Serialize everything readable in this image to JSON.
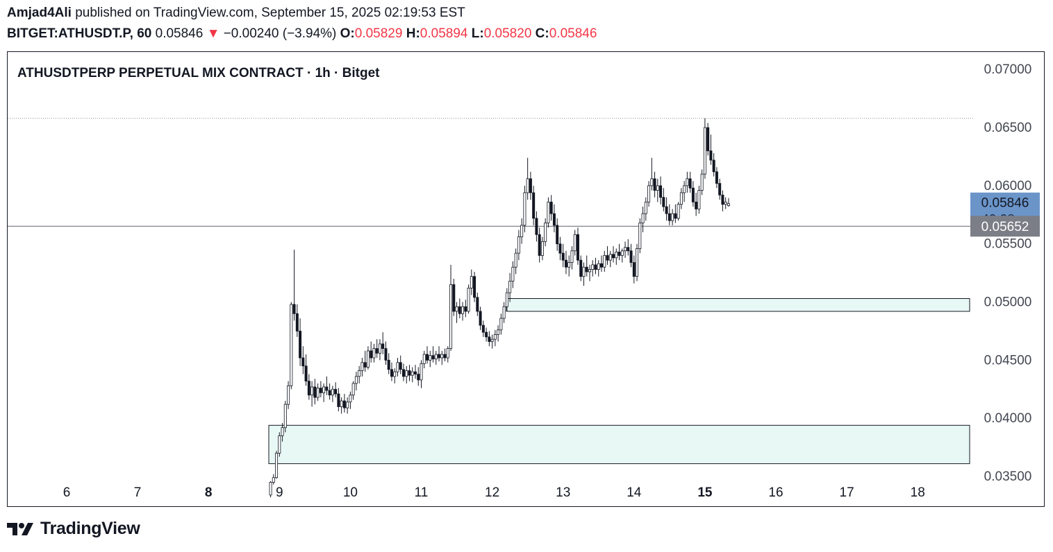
{
  "header": {
    "author": "Amjad4Ali",
    "published_text": "published on TradingView.com, September 15, 2025 02:19:53 EST",
    "symbol": "BITGET:ATHUSDT.P, 60",
    "last": "0.05846",
    "change": "−0.00240 (−3.94%)",
    "open_label": "O:",
    "open": "0.05829",
    "high_label": "H:",
    "high": "0.05894",
    "low_label": "L:",
    "low": "0.05820",
    "close_label": "C:",
    "close": "0.05846"
  },
  "footer": {
    "brand": "TradingView"
  },
  "colors": {
    "candle": "#131722",
    "zone_fill": "#e8f8f4",
    "price_tag": "#6b95c9",
    "line_tag": "#7b7e86",
    "red": "#f23645"
  },
  "chart_data": {
    "type": "candlestick",
    "title": "ATHUSDTPERP PERPETUAL MIX CONTRACT · 1h · Bitget",
    "x_tick_labels": [
      "6",
      "7",
      "8",
      "9",
      "10",
      "11",
      "12",
      "13",
      "14",
      "15",
      "16",
      "17",
      "18"
    ],
    "x_tick_bold": [
      "8",
      "15"
    ],
    "ylim": [
      0.0325,
      0.0715
    ],
    "y_tick_labels": [
      "0.07000",
      "0.06500",
      "0.06000",
      "0.05500",
      "0.05000",
      "0.04500",
      "0.04000",
      "0.03500"
    ],
    "last_price": {
      "value": 0.05846,
      "label": "0.05846",
      "countdown": "40:08"
    },
    "horizontal_line": {
      "value": 0.05652,
      "label": "0.05652"
    },
    "dotted_line": {
      "value": 0.0658
    },
    "zones": [
      {
        "from_day": 12.2,
        "top": 0.0503,
        "bottom": 0.0492
      },
      {
        "from_day": 8.85,
        "top": 0.0394,
        "bottom": 0.0361
      }
    ],
    "candles_hourly_from_sep8_21h": [
      {
        "o": 0.0334,
        "h": 0.0346,
        "l": 0.0332,
        "c": 0.0345
      },
      {
        "o": 0.0345,
        "h": 0.0352,
        "l": 0.0343,
        "c": 0.0349
      },
      {
        "o": 0.0349,
        "h": 0.0372,
        "l": 0.0348,
        "c": 0.037
      },
      {
        "o": 0.037,
        "h": 0.0388,
        "l": 0.0367,
        "c": 0.0385
      },
      {
        "o": 0.0385,
        "h": 0.0396,
        "l": 0.038,
        "c": 0.0392
      },
      {
        "o": 0.0392,
        "h": 0.0415,
        "l": 0.0388,
        "c": 0.0412
      },
      {
        "o": 0.0412,
        "h": 0.0432,
        "l": 0.0408,
        "c": 0.0428
      },
      {
        "o": 0.0428,
        "h": 0.05,
        "l": 0.0425,
        "c": 0.0498
      },
      {
        "o": 0.0498,
        "h": 0.0545,
        "l": 0.0484,
        "c": 0.049
      },
      {
        "o": 0.049,
        "h": 0.0498,
        "l": 0.047,
        "c": 0.0475
      },
      {
        "o": 0.0475,
        "h": 0.0486,
        "l": 0.0445,
        "c": 0.0452
      },
      {
        "o": 0.0452,
        "h": 0.0462,
        "l": 0.0438,
        "c": 0.0445
      },
      {
        "o": 0.0445,
        "h": 0.0455,
        "l": 0.0428,
        "c": 0.0432
      },
      {
        "o": 0.0432,
        "h": 0.0438,
        "l": 0.0416,
        "c": 0.042
      },
      {
        "o": 0.042,
        "h": 0.0432,
        "l": 0.041,
        "c": 0.0427
      },
      {
        "o": 0.0427,
        "h": 0.0434,
        "l": 0.0412,
        "c": 0.0418
      },
      {
        "o": 0.0418,
        "h": 0.043,
        "l": 0.0415,
        "c": 0.0426
      },
      {
        "o": 0.0426,
        "h": 0.0432,
        "l": 0.0418,
        "c": 0.0422
      },
      {
        "o": 0.0422,
        "h": 0.043,
        "l": 0.0414,
        "c": 0.0427
      },
      {
        "o": 0.0427,
        "h": 0.0436,
        "l": 0.042,
        "c": 0.0424
      },
      {
        "o": 0.0424,
        "h": 0.043,
        "l": 0.0416,
        "c": 0.042
      },
      {
        "o": 0.042,
        "h": 0.0428,
        "l": 0.0414,
        "c": 0.0425
      },
      {
        "o": 0.0425,
        "h": 0.0431,
        "l": 0.0418,
        "c": 0.0421
      },
      {
        "o": 0.0421,
        "h": 0.0426,
        "l": 0.0406,
        "c": 0.041
      },
      {
        "o": 0.041,
        "h": 0.0418,
        "l": 0.0404,
        "c": 0.0415
      },
      {
        "o": 0.0415,
        "h": 0.0421,
        "l": 0.0405,
        "c": 0.0409
      },
      {
        "o": 0.0409,
        "h": 0.0418,
        "l": 0.0404,
        "c": 0.0414
      },
      {
        "o": 0.0414,
        "h": 0.0423,
        "l": 0.0408,
        "c": 0.042
      },
      {
        "o": 0.042,
        "h": 0.0432,
        "l": 0.0416,
        "c": 0.043
      },
      {
        "o": 0.043,
        "h": 0.044,
        "l": 0.0424,
        "c": 0.0436
      },
      {
        "o": 0.0436,
        "h": 0.0445,
        "l": 0.043,
        "c": 0.0441
      },
      {
        "o": 0.0441,
        "h": 0.0452,
        "l": 0.0436,
        "c": 0.0448
      },
      {
        "o": 0.0448,
        "h": 0.0458,
        "l": 0.044,
        "c": 0.0444
      },
      {
        "o": 0.0444,
        "h": 0.0462,
        "l": 0.0442,
        "c": 0.0458
      },
      {
        "o": 0.0458,
        "h": 0.0466,
        "l": 0.0448,
        "c": 0.0452
      },
      {
        "o": 0.0452,
        "h": 0.0464,
        "l": 0.0448,
        "c": 0.046
      },
      {
        "o": 0.046,
        "h": 0.0468,
        "l": 0.0452,
        "c": 0.0456
      },
      {
        "o": 0.0456,
        "h": 0.0468,
        "l": 0.045,
        "c": 0.0464
      },
      {
        "o": 0.0464,
        "h": 0.0474,
        "l": 0.0455,
        "c": 0.046
      },
      {
        "o": 0.046,
        "h": 0.0466,
        "l": 0.0446,
        "c": 0.045
      },
      {
        "o": 0.045,
        "h": 0.0456,
        "l": 0.0438,
        "c": 0.0442
      },
      {
        "o": 0.0442,
        "h": 0.0448,
        "l": 0.0432,
        "c": 0.0436
      },
      {
        "o": 0.0436,
        "h": 0.0443,
        "l": 0.043,
        "c": 0.044
      },
      {
        "o": 0.044,
        "h": 0.0452,
        "l": 0.0436,
        "c": 0.0448
      },
      {
        "o": 0.0448,
        "h": 0.0454,
        "l": 0.0438,
        "c": 0.0442
      },
      {
        "o": 0.0442,
        "h": 0.0447,
        "l": 0.0432,
        "c": 0.0436
      },
      {
        "o": 0.0436,
        "h": 0.0445,
        "l": 0.043,
        "c": 0.0441
      },
      {
        "o": 0.0441,
        "h": 0.0446,
        "l": 0.0432,
        "c": 0.0437
      },
      {
        "o": 0.0437,
        "h": 0.0444,
        "l": 0.0431,
        "c": 0.044
      },
      {
        "o": 0.044,
        "h": 0.0446,
        "l": 0.0434,
        "c": 0.0438
      },
      {
        "o": 0.0438,
        "h": 0.0444,
        "l": 0.0428,
        "c": 0.0433
      },
      {
        "o": 0.0433,
        "h": 0.045,
        "l": 0.0426,
        "c": 0.0447
      },
      {
        "o": 0.0447,
        "h": 0.0458,
        "l": 0.0443,
        "c": 0.0455
      },
      {
        "o": 0.0455,
        "h": 0.0462,
        "l": 0.0447,
        "c": 0.045
      },
      {
        "o": 0.045,
        "h": 0.0458,
        "l": 0.0444,
        "c": 0.0454
      },
      {
        "o": 0.0454,
        "h": 0.0462,
        "l": 0.0448,
        "c": 0.0451
      },
      {
        "o": 0.0451,
        "h": 0.0458,
        "l": 0.0446,
        "c": 0.0455
      },
      {
        "o": 0.0455,
        "h": 0.0462,
        "l": 0.0449,
        "c": 0.0452
      },
      {
        "o": 0.0452,
        "h": 0.0458,
        "l": 0.0446,
        "c": 0.0455
      },
      {
        "o": 0.0455,
        "h": 0.046,
        "l": 0.0449,
        "c": 0.0452
      },
      {
        "o": 0.0452,
        "h": 0.0462,
        "l": 0.0448,
        "c": 0.046
      },
      {
        "o": 0.046,
        "h": 0.0532,
        "l": 0.0458,
        "c": 0.0515
      },
      {
        "o": 0.0515,
        "h": 0.052,
        "l": 0.0488,
        "c": 0.0492
      },
      {
        "o": 0.0492,
        "h": 0.05,
        "l": 0.0482,
        "c": 0.0496
      },
      {
        "o": 0.0496,
        "h": 0.0503,
        "l": 0.0486,
        "c": 0.049
      },
      {
        "o": 0.049,
        "h": 0.05,
        "l": 0.0484,
        "c": 0.0496
      },
      {
        "o": 0.0496,
        "h": 0.0502,
        "l": 0.0487,
        "c": 0.0492
      },
      {
        "o": 0.0492,
        "h": 0.0515,
        "l": 0.049,
        "c": 0.0512
      },
      {
        "o": 0.0512,
        "h": 0.0528,
        "l": 0.0506,
        "c": 0.0522
      },
      {
        "o": 0.0522,
        "h": 0.0526,
        "l": 0.05,
        "c": 0.0504
      },
      {
        "o": 0.0504,
        "h": 0.0508,
        "l": 0.0488,
        "c": 0.0492
      },
      {
        "o": 0.0492,
        "h": 0.0496,
        "l": 0.0476,
        "c": 0.048
      },
      {
        "o": 0.048,
        "h": 0.0484,
        "l": 0.047,
        "c": 0.0474
      },
      {
        "o": 0.0474,
        "h": 0.0478,
        "l": 0.0466,
        "c": 0.047
      },
      {
        "o": 0.047,
        "h": 0.0475,
        "l": 0.0462,
        "c": 0.0466
      },
      {
        "o": 0.0466,
        "h": 0.0472,
        "l": 0.046,
        "c": 0.0468
      },
      {
        "o": 0.0468,
        "h": 0.0476,
        "l": 0.0462,
        "c": 0.0472
      },
      {
        "o": 0.0472,
        "h": 0.048,
        "l": 0.0466,
        "c": 0.0476
      },
      {
        "o": 0.0476,
        "h": 0.049,
        "l": 0.0472,
        "c": 0.0486
      },
      {
        "o": 0.0486,
        "h": 0.05,
        "l": 0.0482,
        "c": 0.0496
      },
      {
        "o": 0.0496,
        "h": 0.0512,
        "l": 0.0492,
        "c": 0.0508
      },
      {
        "o": 0.0508,
        "h": 0.0525,
        "l": 0.05,
        "c": 0.0518
      },
      {
        "o": 0.0518,
        "h": 0.0535,
        "l": 0.0512,
        "c": 0.053
      },
      {
        "o": 0.053,
        "h": 0.0546,
        "l": 0.0524,
        "c": 0.0542
      },
      {
        "o": 0.0542,
        "h": 0.0562,
        "l": 0.0536,
        "c": 0.0556
      },
      {
        "o": 0.0556,
        "h": 0.0572,
        "l": 0.055,
        "c": 0.0566
      },
      {
        "o": 0.0566,
        "h": 0.06,
        "l": 0.056,
        "c": 0.0594
      },
      {
        "o": 0.0594,
        "h": 0.0624,
        "l": 0.0588,
        "c": 0.0606
      },
      {
        "o": 0.0606,
        "h": 0.0612,
        "l": 0.0588,
        "c": 0.0594
      },
      {
        "o": 0.0594,
        "h": 0.06,
        "l": 0.0566,
        "c": 0.0572
      },
      {
        "o": 0.0572,
        "h": 0.0578,
        "l": 0.0552,
        "c": 0.0558
      },
      {
        "o": 0.0558,
        "h": 0.0564,
        "l": 0.0534,
        "c": 0.054
      },
      {
        "o": 0.054,
        "h": 0.0556,
        "l": 0.0536,
        "c": 0.0552
      },
      {
        "o": 0.0552,
        "h": 0.0572,
        "l": 0.0548,
        "c": 0.0568
      },
      {
        "o": 0.0568,
        "h": 0.059,
        "l": 0.0564,
        "c": 0.0586
      },
      {
        "o": 0.0586,
        "h": 0.0592,
        "l": 0.057,
        "c": 0.0576
      },
      {
        "o": 0.0576,
        "h": 0.0584,
        "l": 0.056,
        "c": 0.0566
      },
      {
        "o": 0.0566,
        "h": 0.0572,
        "l": 0.0544,
        "c": 0.055
      },
      {
        "o": 0.055,
        "h": 0.0556,
        "l": 0.0536,
        "c": 0.0542
      },
      {
        "o": 0.0542,
        "h": 0.055,
        "l": 0.053,
        "c": 0.0536
      },
      {
        "o": 0.0536,
        "h": 0.0544,
        "l": 0.0524,
        "c": 0.053
      },
      {
        "o": 0.053,
        "h": 0.054,
        "l": 0.0522,
        "c": 0.0534
      },
      {
        "o": 0.0534,
        "h": 0.0548,
        "l": 0.0528,
        "c": 0.0544
      },
      {
        "o": 0.0544,
        "h": 0.0562,
        "l": 0.054,
        "c": 0.0558
      },
      {
        "o": 0.0558,
        "h": 0.0564,
        "l": 0.0532,
        "c": 0.0536
      },
      {
        "o": 0.0536,
        "h": 0.054,
        "l": 0.0518,
        "c": 0.0522
      },
      {
        "o": 0.0522,
        "h": 0.0534,
        "l": 0.0514,
        "c": 0.053
      },
      {
        "o": 0.053,
        "h": 0.054,
        "l": 0.0522,
        "c": 0.0526
      },
      {
        "o": 0.0526,
        "h": 0.0532,
        "l": 0.0518,
        "c": 0.0528
      },
      {
        "o": 0.0528,
        "h": 0.0536,
        "l": 0.0522,
        "c": 0.0532
      },
      {
        "o": 0.0532,
        "h": 0.0538,
        "l": 0.0524,
        "c": 0.0528
      },
      {
        "o": 0.0528,
        "h": 0.0536,
        "l": 0.0522,
        "c": 0.0533
      },
      {
        "o": 0.0533,
        "h": 0.054,
        "l": 0.0526,
        "c": 0.053
      },
      {
        "o": 0.053,
        "h": 0.0544,
        "l": 0.0526,
        "c": 0.054
      },
      {
        "o": 0.054,
        "h": 0.0548,
        "l": 0.0532,
        "c": 0.0536
      },
      {
        "o": 0.0536,
        "h": 0.0544,
        "l": 0.053,
        "c": 0.0541
      },
      {
        "o": 0.0541,
        "h": 0.0548,
        "l": 0.0534,
        "c": 0.0538
      },
      {
        "o": 0.0538,
        "h": 0.0546,
        "l": 0.0532,
        "c": 0.0543
      },
      {
        "o": 0.0543,
        "h": 0.055,
        "l": 0.0536,
        "c": 0.054
      },
      {
        "o": 0.054,
        "h": 0.0546,
        "l": 0.0534,
        "c": 0.0544
      },
      {
        "o": 0.0544,
        "h": 0.0552,
        "l": 0.0538,
        "c": 0.0547
      },
      {
        "o": 0.0547,
        "h": 0.0554,
        "l": 0.054,
        "c": 0.0544
      },
      {
        "o": 0.0544,
        "h": 0.055,
        "l": 0.053,
        "c": 0.0534
      },
      {
        "o": 0.0534,
        "h": 0.054,
        "l": 0.0516,
        "c": 0.0522
      },
      {
        "o": 0.0522,
        "h": 0.055,
        "l": 0.0518,
        "c": 0.0546
      },
      {
        "o": 0.0546,
        "h": 0.0572,
        "l": 0.0542,
        "c": 0.0568
      },
      {
        "o": 0.0568,
        "h": 0.0582,
        "l": 0.056,
        "c": 0.0576
      },
      {
        "o": 0.0576,
        "h": 0.059,
        "l": 0.057,
        "c": 0.0586
      },
      {
        "o": 0.0586,
        "h": 0.0604,
        "l": 0.0582,
        "c": 0.06
      },
      {
        "o": 0.06,
        "h": 0.0624,
        "l": 0.0596,
        "c": 0.0606
      },
      {
        "o": 0.0606,
        "h": 0.0612,
        "l": 0.059,
        "c": 0.0596
      },
      {
        "o": 0.0596,
        "h": 0.0606,
        "l": 0.0586,
        "c": 0.06
      },
      {
        "o": 0.06,
        "h": 0.0608,
        "l": 0.0584,
        "c": 0.059
      },
      {
        "o": 0.059,
        "h": 0.0598,
        "l": 0.0578,
        "c": 0.0582
      },
      {
        "o": 0.0582,
        "h": 0.059,
        "l": 0.057,
        "c": 0.0576
      },
      {
        "o": 0.0576,
        "h": 0.0584,
        "l": 0.0566,
        "c": 0.057
      },
      {
        "o": 0.057,
        "h": 0.058,
        "l": 0.0566,
        "c": 0.0576
      },
      {
        "o": 0.0576,
        "h": 0.0584,
        "l": 0.0568,
        "c": 0.0572
      },
      {
        "o": 0.0572,
        "h": 0.0586,
        "l": 0.057,
        "c": 0.0584
      },
      {
        "o": 0.0584,
        "h": 0.0598,
        "l": 0.058,
        "c": 0.0594
      },
      {
        "o": 0.0594,
        "h": 0.0604,
        "l": 0.0586,
        "c": 0.06
      },
      {
        "o": 0.06,
        "h": 0.0612,
        "l": 0.0594,
        "c": 0.0606
      },
      {
        "o": 0.0606,
        "h": 0.0612,
        "l": 0.0594,
        "c": 0.0598
      },
      {
        "o": 0.0598,
        "h": 0.0604,
        "l": 0.0582,
        "c": 0.0586
      },
      {
        "o": 0.0586,
        "h": 0.0594,
        "l": 0.0574,
        "c": 0.058
      },
      {
        "o": 0.058,
        "h": 0.06,
        "l": 0.0576,
        "c": 0.0596
      },
      {
        "o": 0.0596,
        "h": 0.0614,
        "l": 0.0592,
        "c": 0.061
      },
      {
        "o": 0.061,
        "h": 0.0658,
        "l": 0.0606,
        "c": 0.065
      },
      {
        "o": 0.065,
        "h": 0.0654,
        "l": 0.0626,
        "c": 0.063
      },
      {
        "o": 0.063,
        "h": 0.0644,
        "l": 0.0618,
        "c": 0.0622
      },
      {
        "o": 0.0622,
        "h": 0.0628,
        "l": 0.0608,
        "c": 0.0612
      },
      {
        "o": 0.0612,
        "h": 0.0616,
        "l": 0.0598,
        "c": 0.0602
      },
      {
        "o": 0.0602,
        "h": 0.0606,
        "l": 0.0588,
        "c": 0.0592
      },
      {
        "o": 0.0592,
        "h": 0.0596,
        "l": 0.0578,
        "c": 0.0584
      },
      {
        "o": 0.0584,
        "h": 0.059,
        "l": 0.058,
        "c": 0.0586
      },
      {
        "o": 0.05829,
        "h": 0.05894,
        "l": 0.0582,
        "c": 0.05846
      }
    ]
  }
}
